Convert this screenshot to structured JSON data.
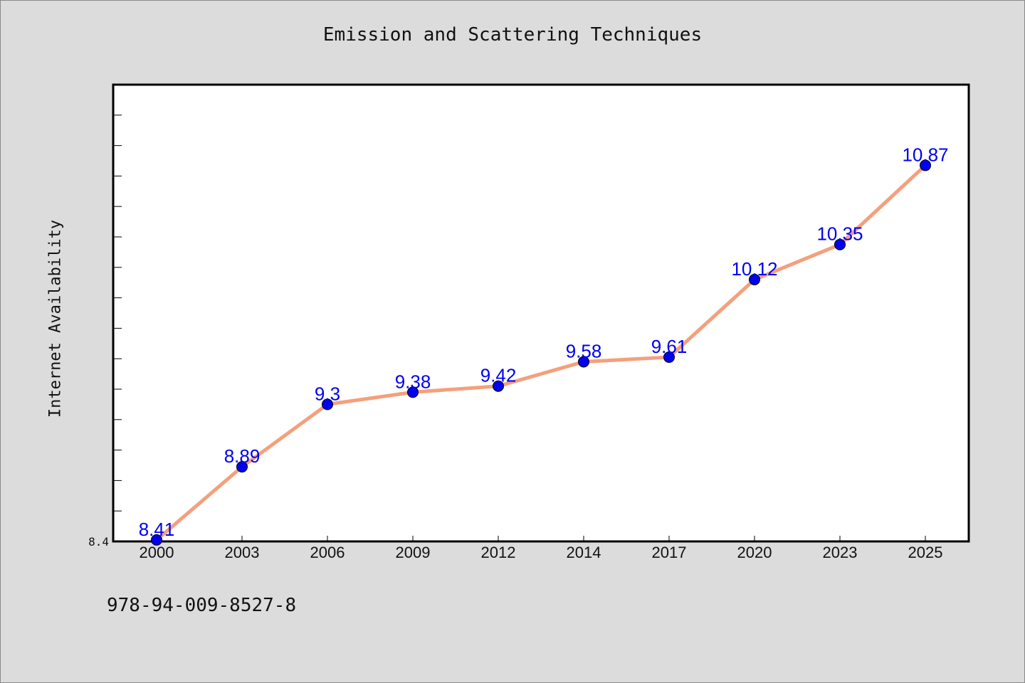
{
  "colors": {
    "background": "#dcdcdc",
    "plot_background": "#ffffff",
    "line": "#f4a07c",
    "marker": "#0000ee",
    "data_label": "#0000ee"
  },
  "footnote": "978-94-009-8527-8",
  "chart_data": {
    "type": "line",
    "title": "Emission and Scattering Techniques",
    "xlabel": "",
    "ylabel": "Internet Availability",
    "categories": [
      "2000",
      "2003",
      "2006",
      "2009",
      "2012",
      "2014",
      "2017",
      "2020",
      "2023",
      "2025"
    ],
    "series": [
      {
        "values": [
          8.41,
          8.89,
          9.3,
          9.38,
          9.42,
          9.58,
          9.61,
          10.12,
          10.35,
          10.87
        ],
        "labels": [
          "8.41",
          "8.89",
          "9.3",
          "9.38",
          "9.42",
          "9.58",
          "9.61",
          "10.12",
          "10.35",
          "10.87"
        ]
      }
    ],
    "ylim": [
      8.4,
      11.4
    ],
    "yticks_labeled": [
      "8.4"
    ],
    "grid": false,
    "legend": "none"
  }
}
